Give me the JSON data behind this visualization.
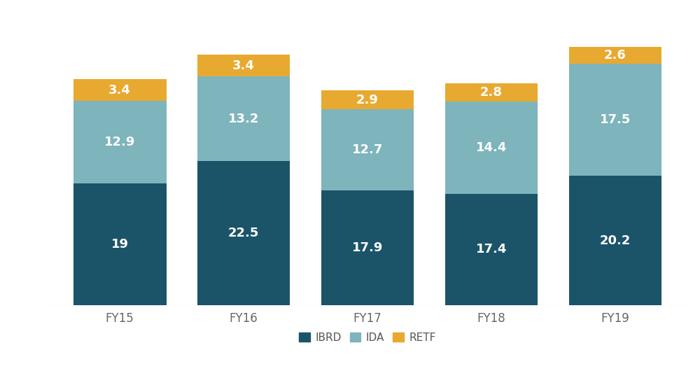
{
  "categories": [
    "FY15",
    "FY16",
    "FY17",
    "FY18",
    "FY19"
  ],
  "IBRD": [
    19,
    22.5,
    17.9,
    17.4,
    20.2
  ],
  "IDA": [
    12.9,
    13.2,
    12.7,
    14.4,
    17.5
  ],
  "RETF": [
    3.4,
    3.4,
    2.9,
    2.8,
    2.6
  ],
  "IBRD_labels": [
    "19",
    "22.5",
    "17.9",
    "17.4",
    "20.2"
  ],
  "IDA_labels": [
    "12.9",
    "13.2",
    "12.7",
    "14.4",
    "17.5"
  ],
  "RETF_labels": [
    "3.4",
    "3.4",
    "2.9",
    "2.8",
    "2.6"
  ],
  "colors": {
    "IBRD": "#1b5468",
    "IDA": "#7eb4bc",
    "RETF": "#e8a930"
  },
  "bar_width": 0.75,
  "label_fontsize": 13,
  "tick_fontsize": 12,
  "ylabel_fontsize": 12,
  "background_color": "#ffffff",
  "ylim": [
    0,
    46
  ]
}
